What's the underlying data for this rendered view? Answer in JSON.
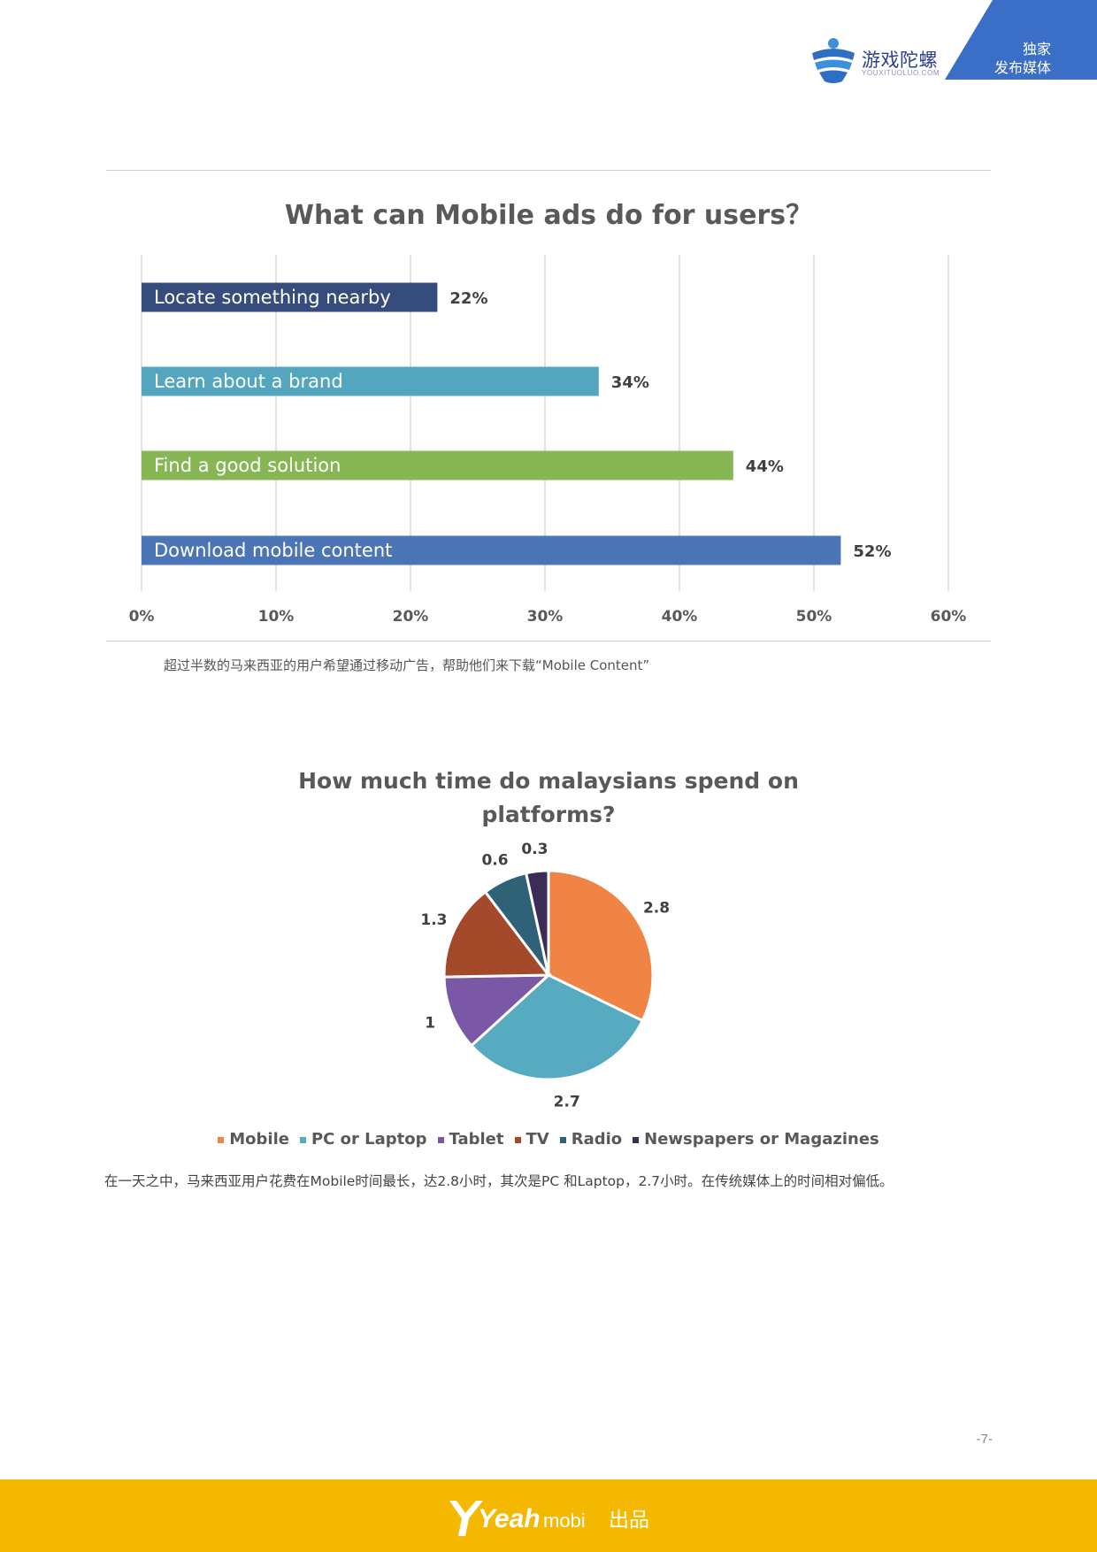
{
  "header": {
    "brand_name": "游戏陀螺",
    "brand_url": "YOUXITUOLUO.COM",
    "corner_line1": "独家",
    "corner_line2": "发布媒体",
    "accent": "#3b6fc7"
  },
  "chart_data": [
    {
      "type": "bar",
      "orientation": "horizontal",
      "title": "What can Mobile ads do for users？",
      "categories": [
        "Locate something nearby",
        "Learn about a brand",
        "Find a good  solution",
        "Download mobile content"
      ],
      "values": [
        22,
        34,
        44,
        52
      ],
      "value_labels": [
        "22%",
        "34%",
        "44%",
        "52%"
      ],
      "colors": [
        "#354c7c",
        "#54a6bf",
        "#86b754",
        "#4c75b7"
      ],
      "xticks": [
        "0%",
        "10%",
        "20%",
        "30%",
        "40%",
        "50%",
        "60%"
      ],
      "xlim": [
        0,
        60
      ],
      "grid": true
    },
    {
      "type": "pie",
      "title": "How much time  do malaysians spend on platforms?",
      "categories": [
        "Mobile",
        "PC or Laptop",
        "Tablet",
        "TV",
        "Radio",
        "Newspapers or Magazines"
      ],
      "values": [
        2.8,
        2.7,
        1,
        1.3,
        0.6,
        0.3
      ],
      "value_labels": [
        "2.8",
        "2.7",
        "1",
        "1.3",
        "0.6",
        "0.3"
      ],
      "colors": [
        "#ef8445",
        "#56abc0",
        "#7a58a5",
        "#a4492a",
        "#2f6177",
        "#3c2d58"
      ],
      "legend": "bottom"
    }
  ],
  "notes": {
    "note1": "超过半数的马来西亚的用户希望通过移动广告，帮助他们来下载“Mobile Content”",
    "note2": "在一天之中，马来西亚用户花费在Mobile时间最长，达2.8小时，其次是PC 和Laptop，2.7小时。在传统媒体上的时间相对偏低。"
  },
  "page_number": "-7-",
  "footer": {
    "logo_text_main": "Yeah",
    "logo_text_sub": "mobi",
    "made_by": "出品",
    "background": "#f5b800"
  }
}
